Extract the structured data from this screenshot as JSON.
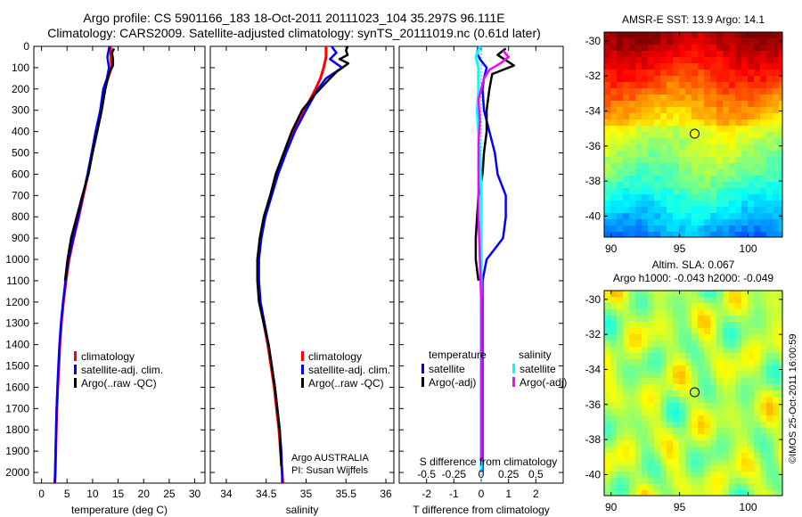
{
  "header": {
    "line1": "Argo profile: CS 5901166_183 18-Oct-2011 20111023_104 35.297S 96.111E",
    "line2": "Climatology: CARS2009. Satellite-adjusted climatology: synTS_20111019.nc (0.61d later)"
  },
  "colors": {
    "climatology": "#ff0000",
    "satellite": "#0000ff",
    "argo": "#000000",
    "satellite_salinity": "#00ffff",
    "argo_salinity": "#ff00ff"
  },
  "depth_axis": {
    "ylim": [
      2050,
      0
    ],
    "ticks": [
      0,
      100,
      200,
      300,
      400,
      500,
      600,
      700,
      800,
      900,
      1000,
      1100,
      1200,
      1300,
      1400,
      1500,
      1600,
      1700,
      1800,
      1900,
      2000
    ]
  },
  "chart_data": [
    {
      "id": "temperature",
      "type": "line",
      "xlabel": "temperature (deg C)",
      "ylabel": "",
      "xlim": [
        -1.5,
        32
      ],
      "xticks": [
        0,
        5,
        10,
        15,
        20,
        25,
        30
      ],
      "legend": [
        "climatology",
        "satellite-adj. clim.",
        "Argo(..raw -QC)"
      ],
      "legend_position": "lower-middle",
      "series": [
        {
          "name": "climatology",
          "color": "#ff0000",
          "points": [
            [
              13.5,
              0
            ],
            [
              13.6,
              50
            ],
            [
              13.7,
              100
            ],
            [
              13.0,
              150
            ],
            [
              12.2,
              200
            ],
            [
              11.6,
              300
            ],
            [
              10.7,
              400
            ],
            [
              9.9,
              500
            ],
            [
              9.1,
              600
            ],
            [
              8.2,
              700
            ],
            [
              7.3,
              800
            ],
            [
              6.3,
              900
            ],
            [
              5.4,
              1000
            ],
            [
              4.8,
              1100
            ],
            [
              4.3,
              1200
            ],
            [
              3.9,
              1300
            ],
            [
              3.6,
              1400
            ],
            [
              3.4,
              1500
            ],
            [
              3.2,
              1600
            ],
            [
              3.0,
              1700
            ],
            [
              2.9,
              1800
            ],
            [
              2.8,
              1900
            ],
            [
              2.7,
              2000
            ],
            [
              2.6,
              2050
            ]
          ]
        },
        {
          "name": "satellite-adj. clim.",
          "color": "#0000ff",
          "points": [
            [
              13.3,
              0
            ],
            [
              12.9,
              50
            ],
            [
              13.2,
              100
            ],
            [
              12.8,
              150
            ],
            [
              12.1,
              200
            ],
            [
              11.5,
              300
            ],
            [
              10.6,
              400
            ],
            [
              9.8,
              500
            ],
            [
              9.0,
              600
            ],
            [
              8.1,
              700
            ],
            [
              7.2,
              800
            ],
            [
              6.2,
              900
            ],
            [
              5.3,
              1000
            ],
            [
              4.7,
              1100
            ],
            [
              4.2,
              1200
            ],
            [
              3.8,
              1300
            ],
            [
              3.5,
              1400
            ],
            [
              3.3,
              1500
            ],
            [
              3.1,
              1600
            ],
            [
              2.95,
              1700
            ],
            [
              2.85,
              1800
            ],
            [
              2.75,
              1900
            ],
            [
              2.65,
              2000
            ],
            [
              2.6,
              2050
            ]
          ]
        },
        {
          "name": "Argo(..raw -QC)",
          "color": "#000000",
          "points": [
            [
              14.2,
              10
            ],
            [
              13.8,
              30
            ],
            [
              14.0,
              60
            ],
            [
              14.0,
              90
            ],
            [
              13.3,
              120
            ],
            [
              12.5,
              200
            ],
            [
              11.8,
              300
            ],
            [
              10.9,
              400
            ],
            [
              10.0,
              500
            ],
            [
              9.2,
              600
            ],
            [
              8.0,
              700
            ],
            [
              6.9,
              800
            ],
            [
              5.8,
              900
            ],
            [
              5.1,
              1000
            ],
            [
              4.6,
              1100
            ]
          ]
        }
      ]
    },
    {
      "id": "salinity",
      "type": "line",
      "xlabel": "salinity",
      "ylabel": "",
      "xlim": [
        33.8,
        36.1
      ],
      "xticks": [
        34,
        34.5,
        35,
        35.5,
        36
      ],
      "legend": [
        "climatology",
        "satellite-adj. clim.",
        "Argo(..raw -QC)"
      ],
      "legend_position": "lower-right",
      "annotations": [
        "Argo AUSTRALIA",
        "PI: Susan Wijffels"
      ],
      "series": [
        {
          "name": "climatology",
          "color": "#ff0000",
          "points": [
            [
              35.25,
              0
            ],
            [
              35.25,
              50
            ],
            [
              35.22,
              100
            ],
            [
              35.18,
              150
            ],
            [
              35.12,
              200
            ],
            [
              34.98,
              300
            ],
            [
              34.85,
              400
            ],
            [
              34.74,
              500
            ],
            [
              34.64,
              600
            ],
            [
              34.56,
              700
            ],
            [
              34.48,
              800
            ],
            [
              34.43,
              900
            ],
            [
              34.4,
              1000
            ],
            [
              34.4,
              1100
            ],
            [
              34.42,
              1200
            ],
            [
              34.47,
              1300
            ],
            [
              34.52,
              1400
            ],
            [
              34.56,
              1500
            ],
            [
              34.6,
              1600
            ],
            [
              34.63,
              1700
            ],
            [
              34.66,
              1800
            ],
            [
              34.68,
              1900
            ],
            [
              34.7,
              2000
            ],
            [
              34.71,
              2050
            ]
          ]
        },
        {
          "name": "satellite-adj. clim.",
          "color": "#0000ff",
          "points": [
            [
              35.32,
              0
            ],
            [
              35.38,
              30
            ],
            [
              35.3,
              60
            ],
            [
              35.45,
              100
            ],
            [
              35.25,
              150
            ],
            [
              35.15,
              200
            ],
            [
              35.0,
              300
            ],
            [
              34.86,
              400
            ],
            [
              34.75,
              500
            ],
            [
              34.65,
              600
            ],
            [
              34.57,
              700
            ],
            [
              34.49,
              800
            ],
            [
              34.44,
              900
            ],
            [
              34.41,
              1000
            ],
            [
              34.41,
              1100
            ],
            [
              34.43,
              1200
            ],
            [
              34.48,
              1300
            ],
            [
              34.53,
              1400
            ],
            [
              34.57,
              1500
            ],
            [
              34.61,
              1600
            ],
            [
              34.64,
              1700
            ],
            [
              34.67,
              1800
            ],
            [
              34.69,
              1900
            ],
            [
              34.7,
              2000
            ],
            [
              34.7,
              2050
            ]
          ]
        },
        {
          "name": "Argo(..raw -QC)",
          "color": "#000000",
          "points": [
            [
              35.52,
              0
            ],
            [
              35.5,
              20
            ],
            [
              35.52,
              40
            ],
            [
              35.42,
              60
            ],
            [
              35.53,
              80
            ],
            [
              35.38,
              120
            ],
            [
              35.25,
              170
            ],
            [
              35.1,
              230
            ],
            [
              34.95,
              300
            ],
            [
              34.82,
              400
            ],
            [
              34.72,
              500
            ],
            [
              34.62,
              600
            ],
            [
              34.55,
              700
            ],
            [
              34.47,
              800
            ],
            [
              34.42,
              900
            ],
            [
              34.39,
              1000
            ],
            [
              34.39,
              1100
            ],
            [
              34.41,
              1200
            ],
            [
              34.47,
              1300
            ],
            [
              34.53,
              1400
            ],
            [
              34.57,
              1500
            ],
            [
              34.61,
              1600
            ],
            [
              34.64,
              1700
            ],
            [
              34.67,
              1800
            ],
            [
              34.68,
              1900
            ],
            [
              34.69,
              1970
            ]
          ]
        }
      ]
    },
    {
      "id": "difference",
      "type": "line",
      "xlabel": "T difference from climatology",
      "xlabel2": "S difference from climatology",
      "ylabel": "",
      "xlim": [
        -3,
        3
      ],
      "xticks": [
        -2,
        -1,
        0,
        1,
        2
      ],
      "xticklabels": [
        "-2",
        "-1",
        "0",
        "1",
        "2"
      ],
      "xticks2": [
        -2,
        -1,
        0,
        1,
        2
      ],
      "xticklabels2": [
        "-0.5",
        "-0.25",
        "0",
        "0.25",
        "0.5"
      ],
      "zero_line": "dotted cyan",
      "legend_temperature_title": "temperature",
      "legend_salinity_title": "salinity",
      "legend_temperature": [
        "satellite",
        "Argo(-adj)"
      ],
      "legend_salinity": [
        "satellite",
        "Argo(-adj)"
      ],
      "series": [
        {
          "name": "satellite",
          "color": "#0000ff",
          "points": [
            [
              -0.1,
              0
            ],
            [
              -0.15,
              30
            ],
            [
              -0.05,
              60
            ],
            [
              0.2,
              100
            ],
            [
              0.1,
              150
            ],
            [
              0.05,
              200
            ],
            [
              0.1,
              300
            ],
            [
              0.3,
              400
            ],
            [
              0.5,
              500
            ],
            [
              0.6,
              600
            ],
            [
              0.9,
              700
            ],
            [
              0.9,
              800
            ],
            [
              0.8,
              900
            ],
            [
              0.5,
              950
            ],
            [
              0.2,
              1000
            ],
            [
              0.05,
              1100
            ],
            [
              0.05,
              1200
            ],
            [
              0.05,
              1400
            ],
            [
              0.05,
              2000
            ]
          ]
        },
        {
          "name": "Argo(-adj)",
          "color": "#000000",
          "points": [
            [
              0.9,
              10
            ],
            [
              0.6,
              40
            ],
            [
              1.2,
              90
            ],
            [
              0.4,
              130
            ],
            [
              0.3,
              200
            ],
            [
              0.2,
              300
            ],
            [
              0.2,
              400
            ],
            [
              0.1,
              500
            ],
            [
              0.05,
              600
            ],
            [
              -0.1,
              700
            ],
            [
              -0.15,
              800
            ],
            [
              -0.2,
              900
            ],
            [
              -0.2,
              1000
            ],
            [
              -0.1,
              1100
            ]
          ]
        },
        {
          "name": "satellite (salinity)",
          "color": "#00ffff",
          "points": [
            [
              -0.05,
              0
            ],
            [
              -0.2,
              50
            ],
            [
              -0.1,
              100
            ],
            [
              -0.1,
              200
            ],
            [
              -0.15,
              300
            ],
            [
              -0.1,
              400
            ],
            [
              -0.05,
              500
            ],
            [
              0.0,
              700
            ],
            [
              0.0,
              1000
            ],
            [
              0.0,
              1500
            ],
            [
              0.0,
              2000
            ]
          ]
        },
        {
          "name": "Argo(-adj) (salinity)",
          "color": "#ff00ff",
          "points": [
            [
              0.8,
              20
            ],
            [
              1.0,
              50
            ],
            [
              0.7,
              80
            ],
            [
              0.3,
              110
            ],
            [
              0.1,
              150
            ],
            [
              -0.1,
              250
            ],
            [
              -0.05,
              350
            ],
            [
              -0.1,
              450
            ],
            [
              -0.1,
              600
            ],
            [
              -0.1,
              800
            ],
            [
              -0.05,
              1000
            ],
            [
              0.0,
              1200
            ],
            [
              0.0,
              1500
            ],
            [
              0.0,
              1800
            ],
            [
              0.0,
              1950
            ]
          ]
        }
      ]
    },
    {
      "id": "sst_map",
      "type": "heatmap",
      "title": "AMSR-E SST: 13.9 Argo: 14.1",
      "xlim": [
        89.5,
        102.5
      ],
      "ylim": [
        -41.2,
        -29.5
      ],
      "xticks": [
        90,
        95,
        100
      ],
      "yticks": [
        -30,
        -32,
        -34,
        -36,
        -38,
        -40
      ],
      "marker": {
        "lon": 96.1,
        "lat": -35.3
      }
    },
    {
      "id": "sla_map",
      "type": "heatmap",
      "title": "Altim. SLA: 0.067",
      "subtitle": "Argo h1000: -0.043 h2000: -0.049",
      "xlim": [
        89.5,
        102.5
      ],
      "ylim": [
        -41.2,
        -29.5
      ],
      "xticks": [
        90,
        95,
        100
      ],
      "yticks": [
        -30,
        -32,
        -34,
        -36,
        -38,
        -40
      ],
      "marker": {
        "lon": 96.1,
        "lat": -35.3
      }
    }
  ],
  "footer_vertical": "©IMOS 25-Oct-2011 16:00:59"
}
